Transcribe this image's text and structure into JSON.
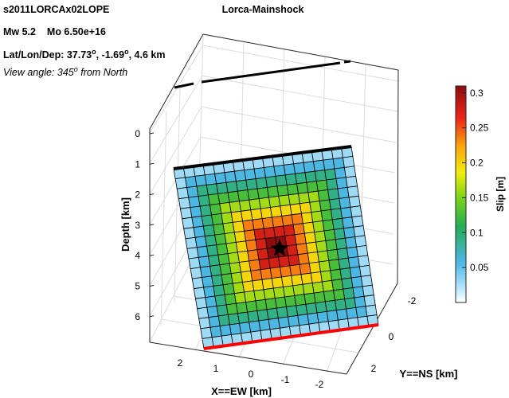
{
  "header": {
    "event_id": "s2011LORCAx02LOPE",
    "mw_label": "Mw 5.2",
    "mo_label": "Mo 6.50e+16",
    "location_prefix": "Lat/Lon/Dep: 37.73",
    "location_mid1": ", -1.69",
    "location_suffix": ", 4.6 km",
    "degree_mark": "o",
    "view_prefix": "View angle: 345",
    "view_suffix": " from North"
  },
  "chart_data": {
    "type": "heatmap",
    "title": "Lorca-Mainshock",
    "xlabel": "X==EW [km]",
    "ylabel": "Y==NS [km]",
    "zlabel": "Depth [km]",
    "x_ticks": [
      "2",
      "1",
      "0",
      "-1",
      "-2"
    ],
    "y_ticks": [
      "-2",
      "0",
      "2"
    ],
    "z_ticks": [
      "0",
      "1",
      "2",
      "3",
      "4",
      "5",
      "6"
    ],
    "colorbar": {
      "label": "Slip [m]",
      "range": [
        0,
        0.31
      ],
      "ticks": [
        "0.3",
        "0.25",
        "0.2",
        "0.15",
        "0.1",
        "0.05"
      ],
      "tick_values": [
        0.3,
        0.25,
        0.2,
        0.15,
        0.1,
        0.05
      ],
      "colormap": "jet"
    },
    "fault_grid": {
      "rows": 18,
      "cols": 18,
      "max_slip": 0.31,
      "description_pattern": "concentric square rings, peak at center"
    },
    "hypocenter_marker": "star",
    "top_edge_color": "#000000",
    "bottom_edge_color": "#ff0000",
    "grid": true
  },
  "colors": {
    "background": "#ffffff",
    "text": "#000000",
    "grid_line": "#d9d9d9",
    "cell_outline": "#000000",
    "top_edge": "#000000",
    "bottom_edge": "#ff0000"
  }
}
